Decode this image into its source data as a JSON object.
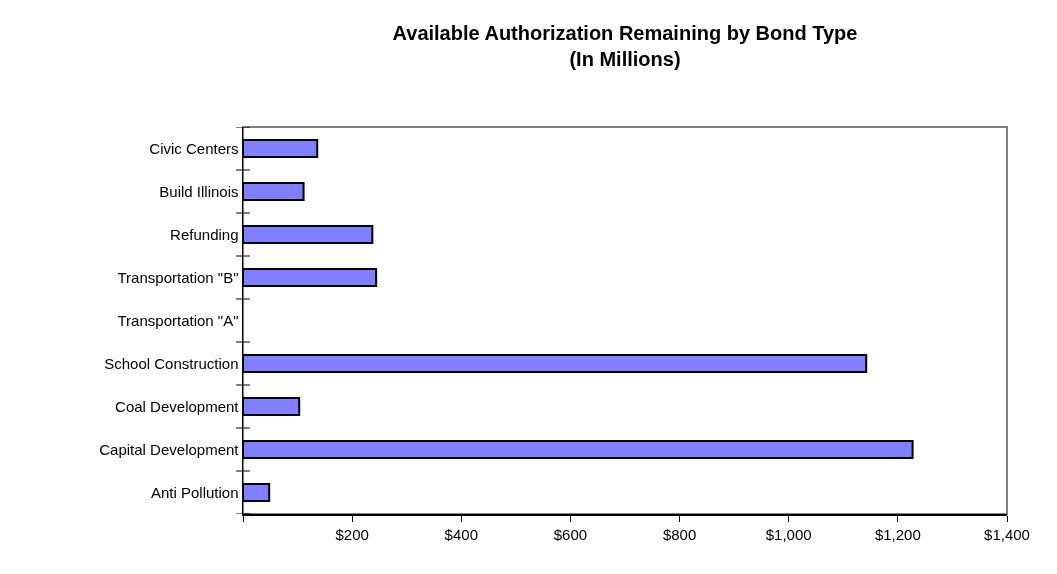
{
  "chart_data": {
    "type": "bar",
    "orientation": "horizontal",
    "title": "Available Authorization Remaining by Bond Type\n(In Millions)",
    "categories": [
      "Civic Centers",
      "Build Illinois",
      "Refunding",
      "Transportation \"B\"",
      "Transportation \"A\"",
      "School Construction",
      "Coal Development",
      "Capital Development",
      "Anti Pollution"
    ],
    "values": [
      136,
      111,
      237,
      244,
      null,
      1142,
      103,
      1227,
      48
    ],
    "color": "#8080ff",
    "xlim": [
      0,
      1400
    ],
    "xticks": [
      {
        "value": 0,
        "label": null
      },
      {
        "value": 200,
        "label": "$200"
      },
      {
        "value": 400,
        "label": "$400"
      },
      {
        "value": 600,
        "label": "$600"
      },
      {
        "value": 800,
        "label": "$800"
      },
      {
        "value": 1000,
        "label": "$1,000"
      },
      {
        "value": 1200,
        "label": "$1,200"
      },
      {
        "value": 1400,
        "label": "$1,400"
      }
    ],
    "grid": false
  }
}
